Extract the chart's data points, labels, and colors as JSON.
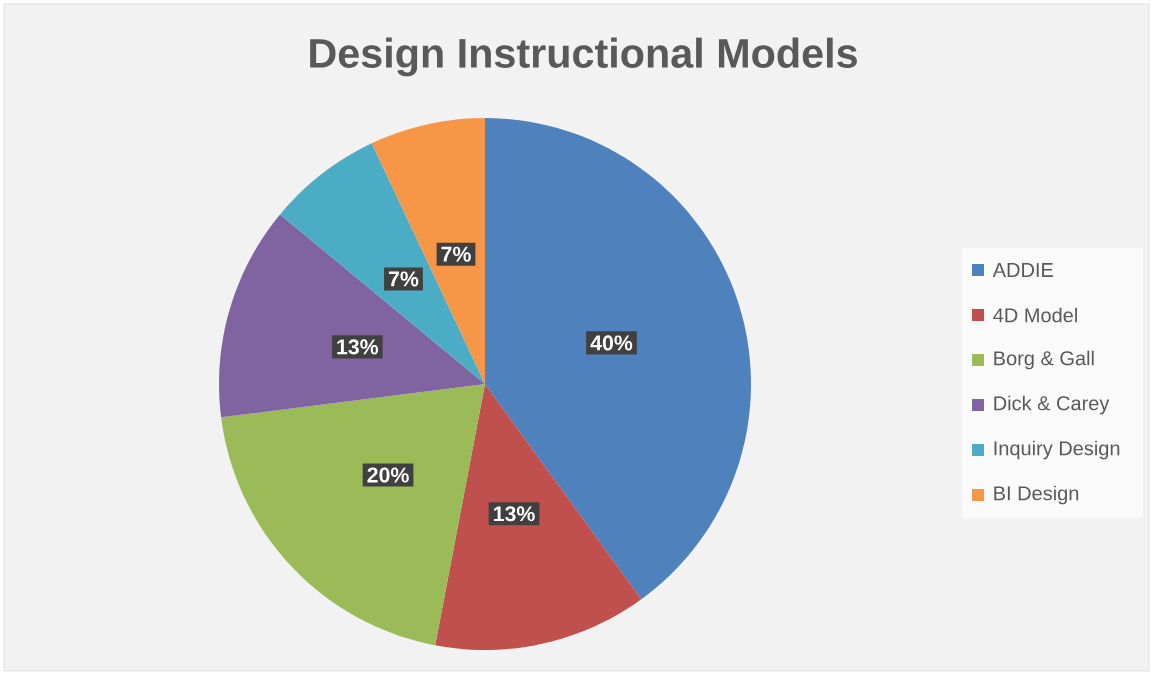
{
  "chart_data": {
    "type": "pie",
    "title": "Design Instructional Models",
    "categories": [
      "ADDIE",
      "4D Model",
      "Borg & Gall",
      "Dick & Carey",
      "Inquiry Design",
      "BI Design"
    ],
    "values": [
      40,
      13,
      20,
      13,
      7,
      7
    ],
    "value_labels": [
      "40%",
      "13%",
      "20%",
      "13%",
      "7%",
      "7%"
    ],
    "colors": [
      "#4f81bd",
      "#c0504d",
      "#9bbb59",
      "#8064a2",
      "#4bacc6",
      "#f79646"
    ],
    "legend": "right"
  }
}
